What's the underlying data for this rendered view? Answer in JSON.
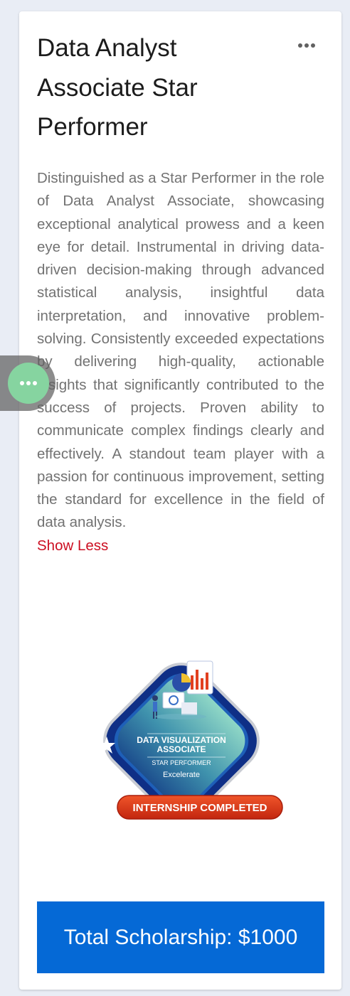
{
  "card": {
    "title": "Data Analyst Associate Star Performer",
    "description": "Distinguished as a Star Performer in the role of Data Analyst Associate, showcasing exceptional analytical prowess and a keen eye for detail. Instrumental in driving data-driven decision-making through advanced statistical analysis, insightful data interpretation, and innovative problem-solving. Consistently exceeded expectations by delivering high-quality, actionable insights that significantly contributed to the success of projects. Proven ability to communicate complex findings clearly and effectively. A standout team player with a passion for continuous improvement, setting the standard for excellence in the field of data analysis.",
    "show_less_label": "Show Less",
    "more_icon": "more-horizontal-icon",
    "total_label": "Total Scholarship: $1000"
  },
  "badge": {
    "title_line1": "DATA VISUALIZATION",
    "title_line2": "ASSOCIATE",
    "subtitle": "STAR PERFORMER",
    "brand": "Excelerate",
    "ribbon": "INTERNSHIP COMPLETED"
  },
  "floating_button": {
    "icon": "more-horizontal-icon"
  },
  "colors": {
    "background": "#e9edf5",
    "card": "#ffffff",
    "link": "#cc0f22",
    "button": "#0569d6",
    "badge_navy": "#0f2f86",
    "badge_ribbon": "#e2401f",
    "fab": "#86d4a0"
  }
}
